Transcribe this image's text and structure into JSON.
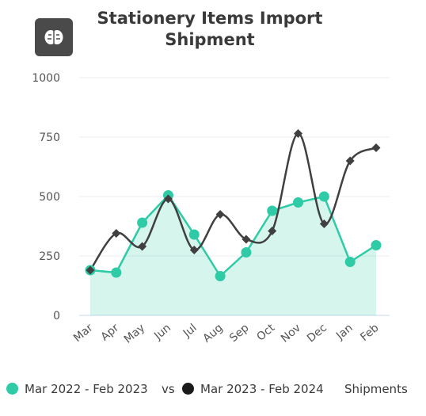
{
  "header": {
    "badge_icon": "brain-icon"
  },
  "chart_data": {
    "type": "area",
    "title": "Stationery Items Import Shipment",
    "title_lines": [
      "Stationery Items Import",
      "Shipment"
    ],
    "categories": [
      "Mar",
      "Apr",
      "May",
      "Jun",
      "Jul",
      "Aug",
      "Sep",
      "Oct",
      "Nov",
      "Dec",
      "Jan",
      "Feb"
    ],
    "series": [
      {
        "name": "Mar 2022 - Feb 2023",
        "color": "#2ecba6",
        "style": "area",
        "values": [
          190,
          180,
          390,
          505,
          340,
          165,
          265,
          440,
          475,
          500,
          225,
          295
        ]
      },
      {
        "name": "Mar 2023 - Feb 2024",
        "color": "#404040",
        "style": "line",
        "values": [
          190,
          345,
          290,
          490,
          275,
          425,
          320,
          355,
          765,
          385,
          650,
          705
        ]
      }
    ],
    "ylim": [
      0,
      1000
    ],
    "yticks": [
      "1000",
      "750",
      "500",
      "250",
      "0"
    ],
    "grid": true
  },
  "legend": {
    "series_a": "Mar 2022 - Feb 2023",
    "vs": "vs",
    "series_b": "Mar 2023 - Feb 2024",
    "suffix": "Shipments"
  }
}
